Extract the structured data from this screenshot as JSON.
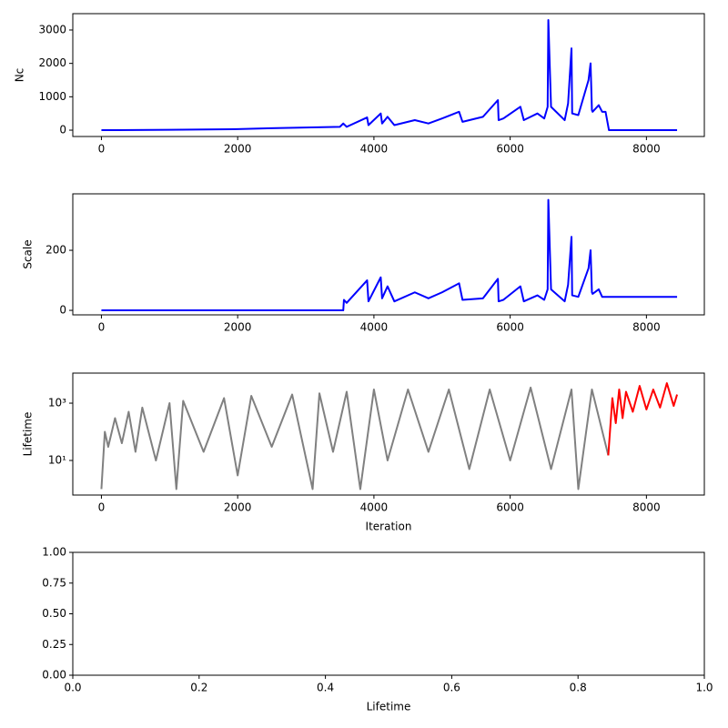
{
  "chart_data": [
    {
      "type": "line",
      "ylabel": "Nc",
      "xlim": [
        -420,
        8850
      ],
      "xticks": [
        0,
        2000,
        4000,
        6000,
        8000
      ],
      "ylim": [
        -190,
        3490
      ],
      "yticks": [
        0,
        1000,
        2000,
        3000
      ],
      "series": [
        {
          "color": "#0000ff",
          "x": [
            0,
            1000,
            2000,
            2500,
            3000,
            3500,
            3550,
            3600,
            3900,
            3920,
            4100,
            4120,
            4200,
            4300,
            4600,
            4800,
            5000,
            5250,
            5300,
            5600,
            5820,
            5830,
            5900,
            6150,
            6200,
            6400,
            6500,
            6550,
            6560,
            6600,
            6800,
            6850,
            6900,
            6910,
            7000,
            7150,
            7180,
            7200,
            7210,
            7300,
            7350,
            7400,
            7450,
            8450
          ],
          "values": [
            0,
            10,
            30,
            60,
            80,
            100,
            200,
            100,
            380,
            150,
            500,
            200,
            400,
            150,
            300,
            200,
            350,
            550,
            250,
            400,
            900,
            300,
            350,
            700,
            300,
            500,
            350,
            700,
            3300,
            700,
            300,
            800,
            2450,
            500,
            450,
            1500,
            2000,
            600,
            550,
            750,
            550,
            550,
            0,
            0
          ]
        }
      ]
    },
    {
      "type": "line",
      "ylabel": "Scale",
      "xlim": [
        -420,
        8850
      ],
      "xticks": [
        0,
        2000,
        4000,
        6000,
        8000
      ],
      "ylim": [
        -15,
        388
      ],
      "yticks": [
        0,
        200
      ],
      "series": [
        {
          "color": "#0000ff",
          "x": [
            0,
            3550,
            3560,
            3600,
            3900,
            3920,
            4100,
            4120,
            4200,
            4300,
            4600,
            4800,
            5000,
            5250,
            5300,
            5600,
            5820,
            5830,
            5900,
            6150,
            6200,
            6400,
            6500,
            6550,
            6560,
            6600,
            6800,
            6850,
            6900,
            6910,
            7000,
            7150,
            7180,
            7200,
            7210,
            7300,
            7350,
            7400,
            7450,
            8450
          ],
          "values": [
            0,
            0,
            35,
            25,
            100,
            30,
            110,
            40,
            80,
            30,
            60,
            40,
            60,
            90,
            35,
            40,
            105,
            30,
            35,
            80,
            30,
            50,
            35,
            70,
            368,
            70,
            30,
            85,
            245,
            50,
            45,
            140,
            200,
            60,
            55,
            70,
            45,
            45,
            45,
            45
          ]
        }
      ]
    },
    {
      "type": "line",
      "ylabel": "Lifetime",
      "xlabel": "Iteration",
      "yscale": "log",
      "xlim": [
        -420,
        8850
      ],
      "xticks": [
        0,
        2000,
        4000,
        6000,
        8000
      ],
      "ylim": [
        0.62,
        11200
      ],
      "yticks": [
        {
          "value": 10,
          "label": "10¹"
        },
        {
          "value": 1000,
          "label": "10³"
        }
      ],
      "series": [
        {
          "color": "#808080",
          "x": [
            0,
            50,
            100,
            200,
            300,
            400,
            500,
            600,
            800,
            1000,
            1100,
            1200,
            1500,
            1800,
            2000,
            2200,
            2500,
            2800,
            3100,
            3200,
            3400,
            3600,
            3800,
            4000,
            4200,
            4500,
            4800,
            5100,
            5400,
            5700,
            6000,
            6300,
            6600,
            6900,
            7000,
            7200,
            7440
          ],
          "values": [
            1,
            100,
            30,
            300,
            40,
            500,
            20,
            700,
            10,
            1000,
            1,
            1200,
            20,
            1500,
            3,
            1800,
            30,
            2000,
            1,
            2200,
            20,
            2500,
            1,
            3000,
            10,
            3000,
            20,
            3000,
            5,
            3000,
            10,
            3500,
            5,
            3000,
            1,
            3000,
            15
          ]
        },
        {
          "color": "#ff0000",
          "x": [
            7440,
            7500,
            7550,
            7600,
            7650,
            7700,
            7800,
            7900,
            8000,
            8100,
            8200,
            8300,
            8400,
            8450
          ],
          "values": [
            15,
            1500,
            200,
            3000,
            300,
            2500,
            500,
            4000,
            600,
            3000,
            700,
            5000,
            800,
            2000
          ]
        }
      ]
    },
    {
      "type": "line",
      "xlabel": "Lifetime",
      "xlim": [
        0,
        1
      ],
      "xticks": [
        {
          "value": 0,
          "label": "0.0"
        },
        {
          "value": 0.2,
          "label": "0.2"
        },
        {
          "value": 0.4,
          "label": "0.4"
        },
        {
          "value": 0.6,
          "label": "0.6"
        },
        {
          "value": 0.8,
          "label": "0.8"
        },
        {
          "value": 1,
          "label": "1.0"
        }
      ],
      "ylim": [
        0,
        1
      ],
      "yticks": [
        {
          "value": 0,
          "label": "0.00"
        },
        {
          "value": 0.25,
          "label": "0.25"
        },
        {
          "value": 0.5,
          "label": "0.50"
        },
        {
          "value": 0.75,
          "label": "0.75"
        },
        {
          "value": 1,
          "label": "1.00"
        }
      ],
      "series": []
    }
  ]
}
